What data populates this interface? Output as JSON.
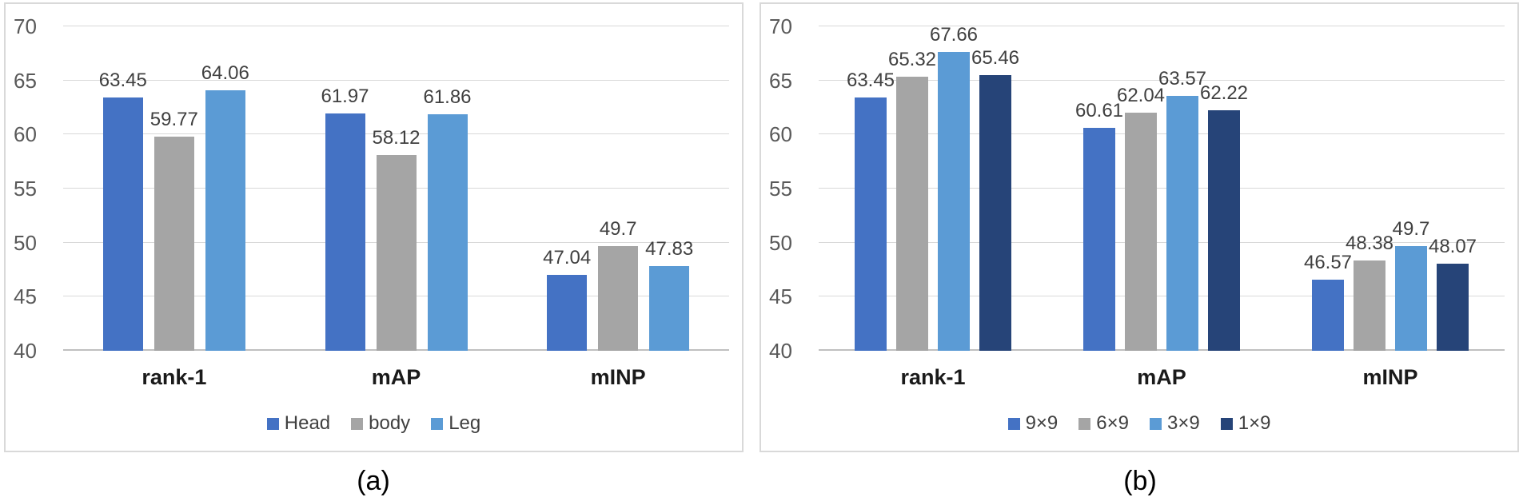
{
  "figure": {
    "captions": {
      "a": "(a)",
      "b": "(b)"
    }
  },
  "colors": {
    "gridline": "#d9d9d9",
    "baseline": "#bfbfbf",
    "tick_label": "#595959",
    "value_label": "#404040",
    "category_label": "#1a1a1a",
    "panel_border": "#d9d9d9",
    "series_blue": "#4472C4",
    "series_gray": "#A5A5A5",
    "series_lightblue": "#5B9BD5",
    "series_navy": "#264478"
  },
  "chart_data": [
    {
      "type": "bar",
      "panel": "a",
      "title": "",
      "xlabel": "",
      "ylabel": "",
      "categories": [
        "rank-1",
        "mAP",
        "mINP"
      ],
      "series": [
        {
          "name": "Head",
          "color": "#4472C4",
          "values": [
            63.45,
            61.97,
            47.04
          ]
        },
        {
          "name": "body",
          "color": "#A5A5A5",
          "values": [
            59.77,
            58.12,
            49.7
          ]
        },
        {
          "name": "Leg",
          "color": "#5B9BD5",
          "values": [
            64.06,
            61.86,
            47.83
          ]
        }
      ],
      "ylim": [
        40,
        70
      ],
      "yticks": [
        40,
        45,
        50,
        55,
        60,
        65,
        70
      ],
      "grid": true,
      "value_labels": true,
      "legend_position": "bottom"
    },
    {
      "type": "bar",
      "panel": "b",
      "title": "",
      "xlabel": "",
      "ylabel": "",
      "categories": [
        "rank-1",
        "mAP",
        "mINP"
      ],
      "series": [
        {
          "name": "9×9",
          "color": "#4472C4",
          "values": [
            63.45,
            60.61,
            46.57
          ]
        },
        {
          "name": "6×9",
          "color": "#A5A5A5",
          "values": [
            65.32,
            62.04,
            48.38
          ]
        },
        {
          "name": "3×9",
          "color": "#5B9BD5",
          "values": [
            67.66,
            63.57,
            49.7
          ]
        },
        {
          "name": "1×9",
          "color": "#264478",
          "values": [
            65.46,
            62.22,
            48.07
          ]
        }
      ],
      "ylim": [
        40,
        70
      ],
      "yticks": [
        40,
        45,
        50,
        55,
        60,
        65,
        70
      ],
      "grid": true,
      "value_labels": true,
      "legend_position": "bottom"
    }
  ]
}
